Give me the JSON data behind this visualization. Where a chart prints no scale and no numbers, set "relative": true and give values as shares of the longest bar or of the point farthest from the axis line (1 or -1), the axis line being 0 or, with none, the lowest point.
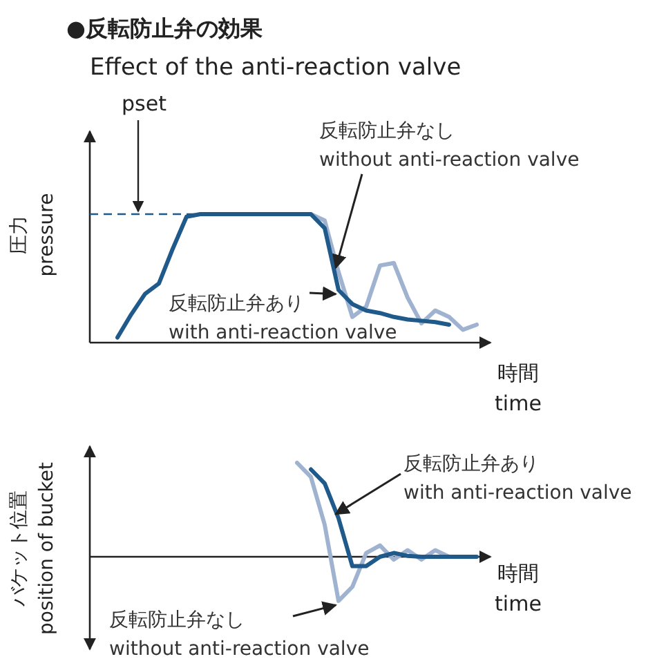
{
  "chart_data": [
    {
      "type": "line",
      "title": "●反転防止弁の効果",
      "subtitle": "Effect of the anti-reaction valve",
      "ylabel": "圧力\npressure",
      "xlabel": "時間\ntime",
      "relative": true,
      "marker": "none",
      "line_style": "solid",
      "categories": [
        null,
        null,
        null,
        null,
        null,
        null,
        null,
        null,
        null,
        null,
        null,
        null,
        null,
        null,
        null,
        null,
        null,
        null,
        null,
        null,
        null,
        null,
        null,
        null,
        null,
        null,
        null,
        null,
        null
      ],
      "series": [
        {
          "name": "反転防止弁あり\nwith anti-reaction valve",
          "color": "#1f5a8a",
          "values": [
            null,
            null,
            0.04,
            0.22,
            0.38,
            0.46,
            0.73,
            0.98,
            1,
            1,
            1,
            1,
            1,
            1,
            1,
            1,
            1,
            0.89,
            0.41,
            0.3,
            0.25,
            0.23,
            0.2,
            0.18,
            0.17,
            0.16,
            0.14,
            null,
            null
          ]
        },
        {
          "name": "反転防止弁なし\nwithout anti-reaction valve",
          "color": "#9fb3d1",
          "values": [
            null,
            null,
            null,
            null,
            null,
            null,
            null,
            null,
            null,
            null,
            null,
            null,
            null,
            null,
            null,
            null,
            1,
            0.95,
            0.55,
            0.2,
            0.28,
            0.6,
            0.62,
            0.35,
            0.15,
            0.25,
            0.2,
            0.1,
            0.14
          ]
        }
      ],
      "ref_lines": [
        {
          "axis": "y",
          "value": 1,
          "label": "pset",
          "color": "#1f5a8a",
          "line_style": "dashed"
        }
      ]
    },
    {
      "type": "line",
      "ylabel": "バケット位置\nposition of bucket",
      "xlabel": "時間\ntime",
      "relative": true,
      "marker": "none",
      "line_style": "solid",
      "categories": [
        null,
        null,
        null,
        null,
        null,
        null,
        null,
        null,
        null,
        null,
        null,
        null,
        null,
        null,
        null,
        null,
        null,
        null,
        null,
        null,
        null,
        null,
        null,
        null,
        null,
        null,
        null,
        null,
        null
      ],
      "series": [
        {
          "name": "反転防止弁あり\nwith anti-reaction valve",
          "color": "#1f5a8a",
          "values": [
            null,
            null,
            null,
            null,
            null,
            null,
            null,
            null,
            null,
            null,
            null,
            null,
            null,
            null,
            null,
            null,
            0.93,
            0.78,
            0.41,
            -0.1,
            -0.1,
            0,
            0.04,
            0.01,
            0,
            0,
            0,
            0,
            0
          ]
        },
        {
          "name": "反転防止弁なし\nwithout anti-reaction valve",
          "color": "#9fb3d1",
          "values": [
            null,
            null,
            null,
            null,
            null,
            null,
            null,
            null,
            null,
            null,
            null,
            null,
            null,
            null,
            null,
            1,
            0.85,
            0.34,
            -0.47,
            -0.32,
            0.04,
            0.12,
            -0.03,
            0.07,
            -0.03,
            0.07,
            0,
            0,
            null
          ]
        }
      ]
    }
  ]
}
